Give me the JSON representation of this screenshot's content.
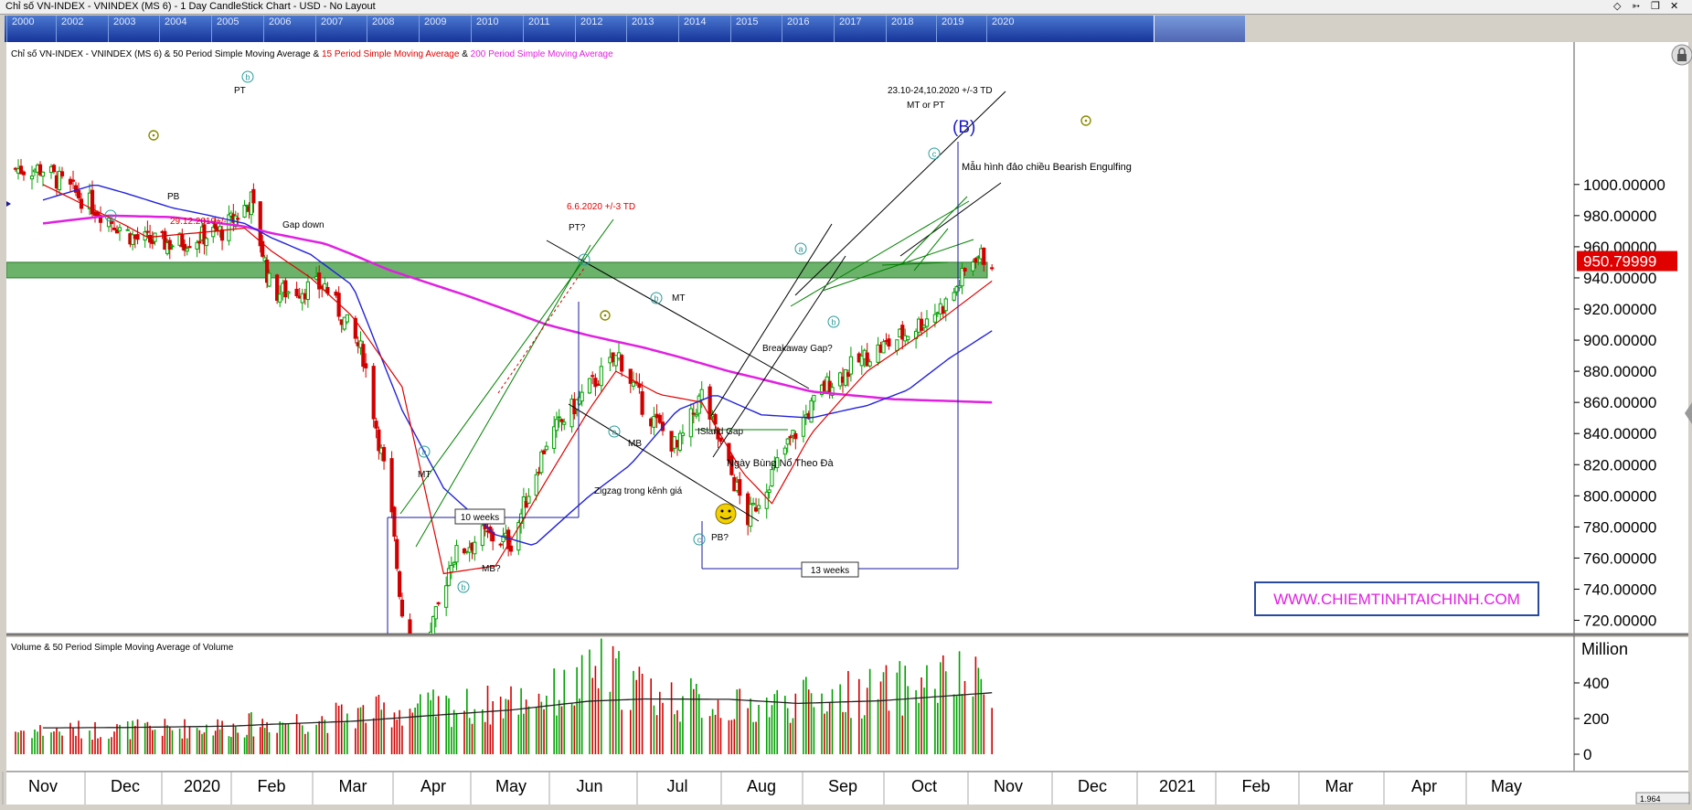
{
  "window": {
    "title": "Chỉ số VN-INDEX - VNINDEX (MS 6) - 1 Day CandleStick Chart - USD - No Layout",
    "icons": [
      "diamond-icon",
      "pin-icon",
      "restore-icon",
      "close-icon"
    ]
  },
  "navigator": {
    "years": [
      "2000",
      "2002",
      "2003",
      "2004",
      "2005",
      "2006",
      "2007",
      "2008",
      "2009",
      "2010",
      "2011",
      "2012",
      "2013",
      "2014",
      "2015",
      "2016",
      "2017",
      "2018",
      "2019",
      "2020"
    ]
  },
  "price_panel": {
    "legend_prefix": "Chỉ số VN-INDEX - VNINDEX (MS 6) & 50 Period Simple Moving Average &",
    "legend_red": " 15 Period Simple Moving Average",
    "legend_amp": " &",
    "legend_magenta": " 200 Period Simple Moving Average",
    "last_price": "950.79999",
    "watermark": "WWW.CHIEMTINHTAICHINH.COM",
    "colors": {
      "sma15": "#e00000",
      "sma50": "#2222dd",
      "sma200": "#e020e0",
      "up": "#00a000",
      "down": "#d00000",
      "zone": "#3a9a3a",
      "label": "#e00000"
    }
  },
  "annotations": {
    "pt_top": "PT",
    "pb_left": "PB",
    "date_dec": "29.12.2019+/-",
    "gap_down": "Gap down",
    "date_jun": "6.6.2020 +/-3 TD",
    "pt_q": "PT?",
    "mt_jul": "MT",
    "breakaway": "Breakaway Gap?",
    "island": "ISland Gap",
    "mb_jul": "MB",
    "ngay": "Ngày Bùng Nổ Theo Đà",
    "zigzag": "Zigzag trong kênh giá",
    "pb_q": "PB?",
    "mt_apr": "MT",
    "mb_q": "MB?",
    "ten_weeks": "10 weeks",
    "thirteen_weeks": "13 weeks",
    "oct_dates": "23.10-24,10.2020  +/-3 TD",
    "mt_or_pt": "MT or PT",
    "b_wave": "(B)",
    "engulfing": "Mẫu hình đảo chiều Bearish Engulfing",
    "wave_a": "a",
    "wave_b": "b",
    "wave_c": "c"
  },
  "volume_panel": {
    "legend": "Volume & 50 Period Simple Moving Average of Volume",
    "unit": "Million",
    "scale": "1.964"
  },
  "chart_data": [
    {
      "type": "candlestick",
      "title": "Chỉ số VN-INDEX - VNINDEX (MS 6) - 1 Day CandleStick Chart",
      "x_ticks": [
        "Nov",
        "Dec",
        "2020",
        "Feb",
        "Mar",
        "Apr",
        "May",
        "Jun",
        "Jul",
        "Aug",
        "Sep",
        "Oct",
        "Nov",
        "Dec",
        "2021",
        "Feb",
        "Mar",
        "Apr",
        "May"
      ],
      "y_ticks": [
        "720.00000",
        "740.00000",
        "760.00000",
        "780.00000",
        "800.00000",
        "820.00000",
        "840.00000",
        "860.00000",
        "880.00000",
        "900.00000",
        "920.00000",
        "940.00000",
        "960.00000",
        "980.00000",
        "1000.00000"
      ],
      "ylim": [
        715,
        1008
      ],
      "grid": false,
      "close_path": [
        [
          "2019-11-01",
          1010
        ],
        [
          "2019-11-20",
          985
        ],
        [
          "2019-12-05",
          965
        ],
        [
          "2019-12-20",
          962
        ],
        [
          "2020-01-10",
          970
        ],
        [
          "2020-01-23",
          990
        ],
        [
          "2020-02-01",
          930
        ],
        [
          "2020-02-20",
          935
        ],
        [
          "2020-03-05",
          890
        ],
        [
          "2020-03-15",
          800
        ],
        [
          "2020-03-24",
          665
        ],
        [
          "2020-04-08",
          760
        ],
        [
          "2020-04-20",
          775
        ],
        [
          "2020-05-01",
          770
        ],
        [
          "2020-05-15",
          835
        ],
        [
          "2020-06-01",
          870
        ],
        [
          "2020-06-11",
          890
        ],
        [
          "2020-06-20",
          855
        ],
        [
          "2020-07-01",
          830
        ],
        [
          "2020-07-10",
          865
        ],
        [
          "2020-07-27",
          785
        ],
        [
          "2020-08-10",
          830
        ],
        [
          "2020-08-25",
          870
        ],
        [
          "2020-09-10",
          890
        ],
        [
          "2020-09-25",
          905
        ],
        [
          "2020-10-10",
          925
        ],
        [
          "2020-10-20",
          955
        ],
        [
          "2020-10-26",
          950.8
        ]
      ],
      "sma15_path": [
        [
          "2019-11-01",
          1000
        ],
        [
          "2019-12-10",
          966
        ],
        [
          "2020-01-20",
          972
        ],
        [
          "2020-02-15",
          940
        ],
        [
          "2020-03-01",
          915
        ],
        [
          "2020-03-20",
          870
        ],
        [
          "2020-04-05",
          750
        ],
        [
          "2020-04-25",
          755
        ],
        [
          "2020-05-15",
          810
        ],
        [
          "2020-06-10",
          880
        ],
        [
          "2020-06-25",
          865
        ],
        [
          "2020-07-10",
          860
        ],
        [
          "2020-07-25",
          815
        ],
        [
          "2020-08-05",
          795
        ],
        [
          "2020-08-20",
          840
        ],
        [
          "2020-09-10",
          880
        ],
        [
          "2020-10-01",
          905
        ],
        [
          "2020-10-26",
          938
        ]
      ],
      "sma50_path": [
        [
          "2019-11-01",
          990
        ],
        [
          "2019-11-20",
          1000
        ],
        [
          "2019-12-20",
          985
        ],
        [
          "2020-01-20",
          975
        ],
        [
          "2020-02-15",
          955
        ],
        [
          "2020-03-01",
          935
        ],
        [
          "2020-03-20",
          855
        ],
        [
          "2020-04-05",
          805
        ],
        [
          "2020-04-25",
          775
        ],
        [
          "2020-05-10",
          768
        ],
        [
          "2020-05-25",
          790
        ],
        [
          "2020-06-15",
          820
        ],
        [
          "2020-07-01",
          855
        ],
        [
          "2020-07-15",
          865
        ],
        [
          "2020-08-01",
          852
        ],
        [
          "2020-08-20",
          850
        ],
        [
          "2020-09-10",
          858
        ],
        [
          "2020-09-25",
          868
        ],
        [
          "2020-10-10",
          888
        ],
        [
          "2020-10-26",
          906
        ]
      ],
      "sma200_path": [
        [
          "2019-11-01",
          975
        ],
        [
          "2019-11-25",
          980
        ],
        [
          "2019-12-20",
          979
        ],
        [
          "2020-01-20",
          973
        ],
        [
          "2020-02-20",
          962
        ],
        [
          "2020-03-15",
          945
        ],
        [
          "2020-04-15",
          928
        ],
        [
          "2020-05-15",
          910
        ],
        [
          "2020-06-20",
          895
        ],
        [
          "2020-07-20",
          880
        ],
        [
          "2020-08-20",
          867
        ],
        [
          "2020-09-20",
          862
        ],
        [
          "2020-10-26",
          860
        ]
      ],
      "resistance_zone": [
        940,
        950
      ]
    },
    {
      "type": "bar",
      "title": "Volume & 50 Period Simple Moving Average of Volume",
      "ylabel": "Million",
      "y_ticks": [
        "0",
        "200",
        "400"
      ],
      "ylim": [
        0,
        660
      ],
      "volume_path": [
        [
          "2019-11-01",
          140
        ],
        [
          "2019-12-15",
          150
        ],
        [
          "2020-01-15",
          165
        ],
        [
          "2020-02-15",
          205
        ],
        [
          "2020-03-20",
          265
        ],
        [
          "2020-04-20",
          285
        ],
        [
          "2020-05-25",
          380
        ],
        [
          "2020-06-05",
          500
        ],
        [
          "2020-06-25",
          345
        ],
        [
          "2020-07-25",
          275
        ],
        [
          "2020-08-20",
          330
        ],
        [
          "2020-09-20",
          385
        ],
        [
          "2020-10-10",
          440
        ],
        [
          "2020-10-26",
          400
        ]
      ],
      "sma_path": [
        [
          "2019-11-01",
          148
        ],
        [
          "2019-12-01",
          150
        ],
        [
          "2020-01-15",
          158
        ],
        [
          "2020-03-01",
          185
        ],
        [
          "2020-04-01",
          218
        ],
        [
          "2020-05-01",
          248
        ],
        [
          "2020-06-01",
          298
        ],
        [
          "2020-06-20",
          310
        ],
        [
          "2020-07-20",
          308
        ],
        [
          "2020-08-15",
          285
        ],
        [
          "2020-09-15",
          300
        ],
        [
          "2020-10-26",
          345
        ]
      ]
    }
  ]
}
